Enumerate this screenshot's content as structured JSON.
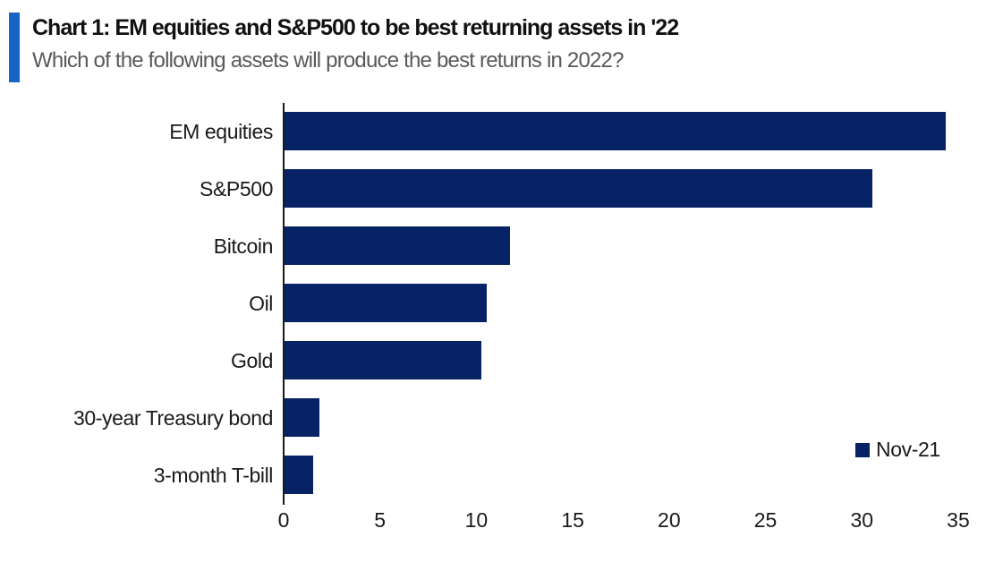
{
  "header": {
    "title": "Chart 1: EM equities and S&P500 to be best returning assets in '22",
    "subtitle": "Which of the following assets will produce the best returns in 2022?",
    "accent_color": "#1565c4"
  },
  "colors": {
    "bar": "#082266",
    "axis": "#1a1a1a",
    "label_text": "#1a1a1a",
    "subtitle_text": "#595959"
  },
  "chart_data": {
    "type": "bar",
    "orientation": "horizontal",
    "title": "Chart 1: EM equities and S&P500 to be best returning assets in '22",
    "subtitle": "Which of the following assets will produce the best returns in 2022?",
    "categories": [
      "EM equities",
      "S&P500",
      "Bitcoin",
      "Oil",
      "Gold",
      "30-year Treasury bond",
      "3-month T-bill"
    ],
    "series": [
      {
        "name": "Nov-21",
        "color": "#082266",
        "values": [
          34.3,
          30.5,
          11.7,
          10.5,
          10.2,
          1.8,
          1.5
        ]
      }
    ],
    "xlabel": "",
    "ylabel": "",
    "xlim": [
      0,
      35
    ],
    "x_ticks": [
      0,
      5,
      10,
      15,
      20,
      25,
      30,
      35
    ],
    "grid": false,
    "legend": {
      "label": "Nov-21",
      "position": "right-middle"
    }
  }
}
